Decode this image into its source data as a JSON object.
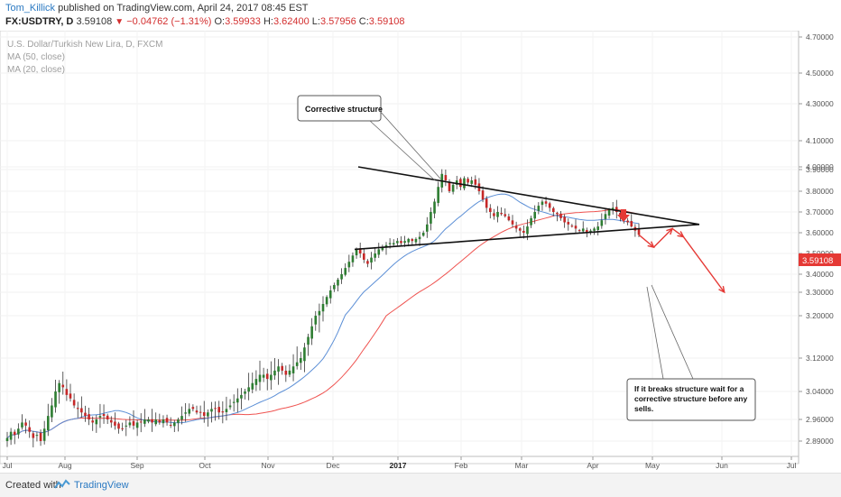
{
  "header": {
    "author": "Tom_Killick",
    "published_text": "published on TradingView.com, April 24, 2017 08:45 EST",
    "symbol": "FX:USDTRY, D",
    "last": "3.59108",
    "change": "−0.04762 (−1.31%)",
    "o_label": "O:",
    "o_value": "3.59933",
    "h_label": "H:",
    "h_value": "3.62400",
    "l_label": "L:",
    "l_value": "3.57956",
    "c_label": "C:",
    "c_value": "3.59108"
  },
  "legend": {
    "title": "U.S. Dollar/Turkish New Lira, D, FXCM",
    "ma50": "MA (50, close)",
    "ma20": "MA (20, close)"
  },
  "annotations": {
    "corrective": "Corrective structure",
    "note_line1": "If it breaks structure wait for a",
    "note_line2": "corrective structure before any",
    "note_line3": "sells."
  },
  "price_badge": "3.59108",
  "footer": {
    "created": "Created with",
    "brand": "TradingView"
  },
  "colors": {
    "up_candle": "#2e7d32",
    "down_candle": "#c62828",
    "ma50": "#ef5350",
    "ma20": "#5c8fd6",
    "projection": "#e53935",
    "badge": "#e53935"
  },
  "chart_data": {
    "type": "candlestick",
    "y_ticks": [
      "4.70000",
      "4.50000",
      "4.30000",
      "4.10000",
      "4.00000",
      "3.90000",
      "3.80000",
      "3.70000",
      "3.60000",
      "3.50000",
      "3.40000",
      "3.30000",
      "3.20000",
      "3.12000",
      "3.04000",
      "2.96000",
      "2.89000"
    ],
    "x_ticks": [
      "Jul",
      "Aug",
      "Sep",
      "Oct",
      "Nov",
      "Dec",
      "2017",
      "Feb",
      "Mar",
      "Apr",
      "May",
      "Jun",
      "Jul"
    ],
    "closes": [
      2.9,
      2.92,
      2.91,
      2.93,
      2.95,
      2.94,
      2.92,
      2.9,
      2.91,
      2.89,
      2.93,
      2.97,
      3.0,
      3.04,
      3.06,
      3.05,
      3.03,
      3.02,
      3.0,
      2.99,
      2.98,
      2.97,
      2.96,
      2.95,
      2.96,
      2.97,
      2.97,
      2.96,
      2.95,
      2.94,
      2.93,
      2.93,
      2.94,
      2.95,
      2.94,
      2.95,
      2.95,
      2.96,
      2.96,
      2.95,
      2.96,
      2.95,
      2.96,
      2.95,
      2.94,
      2.95,
      2.96,
      2.97,
      2.98,
      2.99,
      2.99,
      2.98,
      2.98,
      2.97,
      2.98,
      2.99,
      2.99,
      2.98,
      2.98,
      2.99,
      3.0,
      3.01,
      3.02,
      3.03,
      3.04,
      3.05,
      3.06,
      3.07,
      3.08,
      3.08,
      3.07,
      3.08,
      3.09,
      3.1,
      3.09,
      3.08,
      3.09,
      3.1,
      3.11,
      3.12,
      3.14,
      3.16,
      3.18,
      3.2,
      3.22,
      3.25,
      3.28,
      3.31,
      3.34,
      3.37,
      3.4,
      3.43,
      3.46,
      3.49,
      3.52,
      3.5,
      3.47,
      3.45,
      3.48,
      3.5,
      3.52,
      3.53,
      3.54,
      3.55,
      3.55,
      3.56,
      3.55,
      3.56,
      3.57,
      3.56,
      3.57,
      3.58,
      3.6,
      3.64,
      3.7,
      3.75,
      3.82,
      3.88,
      3.85,
      3.8,
      3.83,
      3.85,
      3.82,
      3.86,
      3.84,
      3.85,
      3.83,
      3.8,
      3.76,
      3.72,
      3.7,
      3.68,
      3.7,
      3.69,
      3.68,
      3.66,
      3.64,
      3.62,
      3.61,
      3.6,
      3.63,
      3.67,
      3.7,
      3.73,
      3.75,
      3.74,
      3.72,
      3.7,
      3.69,
      3.67,
      3.65,
      3.64,
      3.63,
      3.62,
      3.61,
      3.62,
      3.6,
      3.61,
      3.62,
      3.63,
      3.66,
      3.69,
      3.71,
      3.72,
      3.7,
      3.68,
      3.66,
      3.65,
      3.63,
      3.61,
      3.59
    ],
    "projection_points": [
      [
        3.59,
        0
      ],
      [
        3.53,
        4
      ],
      [
        3.62,
        9
      ],
      [
        3.58,
        12
      ],
      [
        3.3,
        23
      ]
    ],
    "triangle": {
      "upper_start": 4.0,
      "lower_start": 3.52,
      "apex": 3.64
    },
    "x_labels": [
      "Jul",
      "Aug",
      "Sep",
      "Oct",
      "Nov",
      "Dec",
      "2017",
      "Feb",
      "Mar",
      "Apr",
      "May",
      "Jun",
      "Jul"
    ],
    "x_range": [
      "2016-07-01",
      "2017-07-15"
    ],
    "y_range": [
      2.86,
      4.75
    ],
    "y_scale": "log"
  }
}
